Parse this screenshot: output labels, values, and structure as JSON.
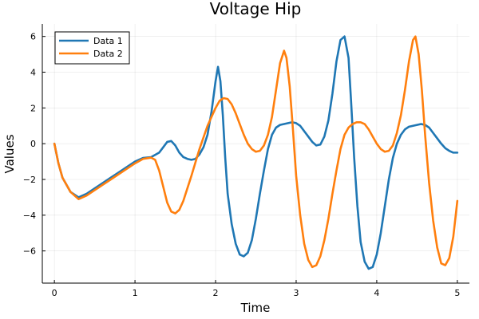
{
  "chart_data": {
    "type": "line",
    "title": "Voltage Hip",
    "xlabel": "Time",
    "ylabel": "Values",
    "xlim": [
      -0.15,
      5.15
    ],
    "ylim": [
      -7.8,
      6.7
    ],
    "xticks": [
      0,
      1,
      2,
      3,
      4,
      5
    ],
    "yticks": [
      -6,
      -4,
      -2,
      0,
      2,
      4,
      6
    ],
    "ytick_labels": [
      "−6",
      "−4",
      "−2",
      "0",
      "2",
      "4",
      "6"
    ],
    "grid": true,
    "legend": "top-left",
    "series": [
      {
        "name": "Data 1",
        "color": "#1f77b4",
        "x": [
          0.0,
          0.05,
          0.1,
          0.2,
          0.3,
          0.4,
          0.5,
          0.6,
          0.7,
          0.8,
          0.9,
          1.0,
          1.1,
          1.2,
          1.3,
          1.35,
          1.4,
          1.45,
          1.5,
          1.55,
          1.6,
          1.65,
          1.7,
          1.75,
          1.8,
          1.85,
          1.9,
          1.95,
          2.0,
          2.03,
          2.06,
          2.09,
          2.12,
          2.15,
          2.2,
          2.25,
          2.3,
          2.35,
          2.4,
          2.45,
          2.5,
          2.55,
          2.6,
          2.65,
          2.7,
          2.75,
          2.8,
          2.85,
          2.9,
          2.95,
          3.0,
          3.05,
          3.1,
          3.15,
          3.2,
          3.25,
          3.3,
          3.35,
          3.4,
          3.45,
          3.5,
          3.55,
          3.6,
          3.65,
          3.68,
          3.72,
          3.76,
          3.8,
          3.85,
          3.9,
          3.95,
          4.0,
          4.05,
          4.1,
          4.15,
          4.2,
          4.25,
          4.3,
          4.35,
          4.4,
          4.45,
          4.5,
          4.55,
          4.6,
          4.65,
          4.7,
          4.75,
          4.8,
          4.85,
          4.9,
          4.95,
          5.0
        ],
        "y": [
          0.0,
          -1.1,
          -1.9,
          -2.7,
          -3.0,
          -2.8,
          -2.5,
          -2.2,
          -1.9,
          -1.6,
          -1.3,
          -1.0,
          -0.8,
          -0.75,
          -0.5,
          -0.2,
          0.1,
          0.15,
          -0.1,
          -0.5,
          -0.75,
          -0.85,
          -0.9,
          -0.85,
          -0.6,
          -0.2,
          0.5,
          1.8,
          3.5,
          4.3,
          3.5,
          1.6,
          -0.8,
          -2.8,
          -4.5,
          -5.6,
          -6.2,
          -6.3,
          -6.1,
          -5.4,
          -4.2,
          -2.8,
          -1.5,
          -0.3,
          0.5,
          0.9,
          1.05,
          1.1,
          1.15,
          1.2,
          1.15,
          1.0,
          0.7,
          0.4,
          0.1,
          -0.1,
          -0.05,
          0.4,
          1.3,
          2.8,
          4.6,
          5.8,
          6.0,
          4.8,
          2.5,
          -0.8,
          -3.5,
          -5.5,
          -6.6,
          -7.0,
          -6.9,
          -6.2,
          -5.0,
          -3.5,
          -2.0,
          -0.8,
          0.0,
          0.5,
          0.8,
          0.95,
          1.0,
          1.05,
          1.1,
          1.05,
          0.9,
          0.6,
          0.3,
          0.0,
          -0.25,
          -0.4,
          -0.5,
          -0.5
        ]
      },
      {
        "name": "Data 2",
        "color": "#ff7f0e",
        "x": [
          0.0,
          0.05,
          0.1,
          0.2,
          0.3,
          0.4,
          0.5,
          0.6,
          0.7,
          0.8,
          0.9,
          1.0,
          1.1,
          1.2,
          1.25,
          1.3,
          1.35,
          1.4,
          1.45,
          1.5,
          1.55,
          1.6,
          1.65,
          1.7,
          1.8,
          1.9,
          2.0,
          2.05,
          2.1,
          2.15,
          2.2,
          2.25,
          2.3,
          2.35,
          2.4,
          2.45,
          2.5,
          2.55,
          2.6,
          2.65,
          2.7,
          2.75,
          2.8,
          2.85,
          2.88,
          2.92,
          2.96,
          3.0,
          3.05,
          3.1,
          3.15,
          3.2,
          3.25,
          3.3,
          3.35,
          3.4,
          3.45,
          3.5,
          3.55,
          3.6,
          3.65,
          3.7,
          3.75,
          3.8,
          3.85,
          3.9,
          3.95,
          4.0,
          4.05,
          4.1,
          4.15,
          4.2,
          4.25,
          4.3,
          4.35,
          4.4,
          4.45,
          4.48,
          4.52,
          4.56,
          4.6,
          4.65,
          4.7,
          4.75,
          4.8,
          4.85,
          4.9,
          4.95,
          5.0
        ],
        "y": [
          0.0,
          -1.1,
          -1.9,
          -2.7,
          -3.1,
          -2.9,
          -2.6,
          -2.3,
          -2.0,
          -1.7,
          -1.4,
          -1.1,
          -0.85,
          -0.78,
          -0.9,
          -1.5,
          -2.4,
          -3.3,
          -3.8,
          -3.9,
          -3.7,
          -3.2,
          -2.5,
          -1.8,
          -0.3,
          1.0,
          2.0,
          2.4,
          2.55,
          2.5,
          2.2,
          1.7,
          1.1,
          0.5,
          0.0,
          -0.3,
          -0.45,
          -0.4,
          -0.1,
          0.5,
          1.5,
          3.0,
          4.5,
          5.2,
          4.8,
          3.2,
          0.8,
          -1.8,
          -4.0,
          -5.6,
          -6.5,
          -6.9,
          -6.8,
          -6.3,
          -5.4,
          -4.2,
          -2.8,
          -1.5,
          -0.3,
          0.5,
          0.9,
          1.1,
          1.2,
          1.2,
          1.1,
          0.8,
          0.4,
          0.0,
          -0.3,
          -0.45,
          -0.4,
          -0.1,
          0.6,
          1.6,
          3.0,
          4.6,
          5.8,
          6.0,
          5.0,
          3.0,
          0.5,
          -2.2,
          -4.3,
          -5.8,
          -6.7,
          -6.8,
          -6.4,
          -5.2,
          -3.2
        ]
      }
    ]
  }
}
